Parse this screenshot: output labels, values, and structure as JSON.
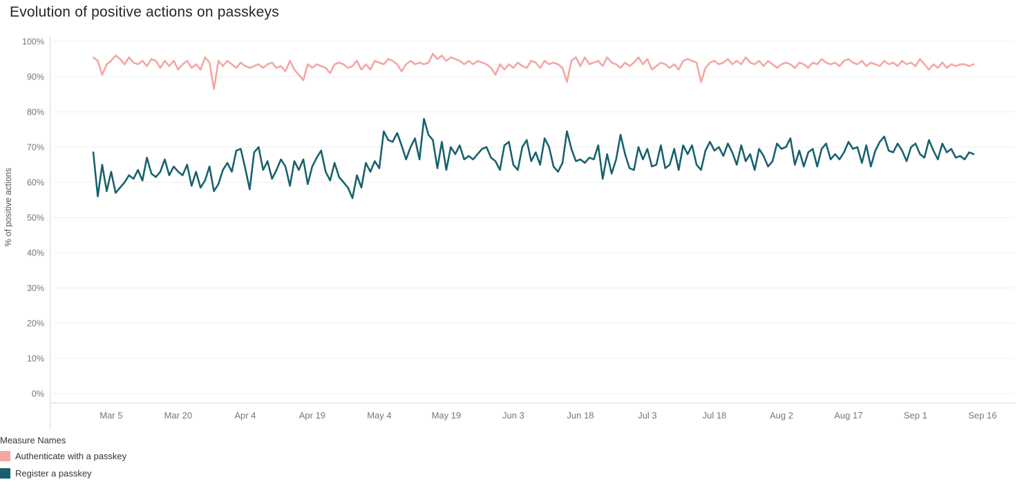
{
  "title": "Evolution of positive actions on passkeys",
  "y_axis": {
    "label": "% of positive actions"
  },
  "legend": {
    "title": "Measure Names",
    "items": [
      {
        "label": "Authenticate with a passkey",
        "color": "#f4a6a3",
        "slug": "authenticate-with-a-passkey"
      },
      {
        "label": "Register a passkey",
        "color": "#17616e",
        "slug": "register-a-passkey"
      }
    ]
  },
  "chart_data": {
    "type": "line",
    "title": "Evolution of positive actions on passkeys",
    "ylabel": "% of positive actions",
    "ylim": [
      0,
      100
    ],
    "y_ticks": [
      0,
      10,
      20,
      30,
      40,
      50,
      60,
      70,
      80,
      90,
      100
    ],
    "y_tick_labels": [
      "0%",
      "10%",
      "20%",
      "30%",
      "40%",
      "50%",
      "60%",
      "70%",
      "80%",
      "90%",
      "100%"
    ],
    "x_unit": "day index from Mar 1",
    "x_tick_days": [
      4,
      19,
      34,
      49,
      64,
      79,
      94,
      109,
      124,
      139,
      154,
      169,
      184,
      199
    ],
    "x_tick_labels": [
      "Mar 5",
      "Mar 20",
      "Apr 4",
      "Apr 19",
      "May 4",
      "May 19",
      "Jun 3",
      "Jun 18",
      "Jul 3",
      "Jul 18",
      "Aug 2",
      "Aug 17",
      "Sep 1",
      "Sep 16"
    ],
    "grid": "horizontal",
    "legend_position": "bottom-left",
    "series": [
      {
        "name": "Authenticate with a passkey",
        "color": "#f4a6a3",
        "values": [
          95.5,
          94.5,
          90.5,
          93.5,
          94.5,
          96,
          95,
          93.5,
          95.5,
          94,
          93.5,
          94.5,
          93,
          95,
          94.5,
          92.5,
          94.5,
          93,
          94.5,
          92,
          93.5,
          94.5,
          92.5,
          93.5,
          92,
          95.5,
          94,
          86.5,
          94.5,
          93,
          94.5,
          93.5,
          92.5,
          94,
          93,
          92.5,
          93,
          93.5,
          92.5,
          93.5,
          94,
          92.5,
          93,
          91.5,
          94.5,
          92,
          90.5,
          89,
          93.5,
          92.5,
          93.5,
          93,
          92.5,
          91,
          93.5,
          94,
          93.5,
          92.5,
          93,
          94.5,
          92,
          93.5,
          92,
          94.5,
          94,
          93.5,
          95,
          94.5,
          93.5,
          91.5,
          93.5,
          94.5,
          93.5,
          94,
          93.5,
          94,
          96.5,
          95,
          96,
          94.5,
          95.5,
          95,
          94.5,
          93.5,
          94.5,
          93.5,
          94.5,
          94,
          93.5,
          92.5,
          90.5,
          93.5,
          92,
          93.5,
          92.5,
          94,
          93,
          92.5,
          94.5,
          94,
          92.5,
          94.5,
          93.5,
          94,
          93.5,
          92.5,
          88.5,
          94.5,
          95.5,
          93,
          95.5,
          93.5,
          94,
          94.5,
          93,
          95.5,
          94,
          93.5,
          92.5,
          94,
          93,
          94,
          95.5,
          93.5,
          95,
          92,
          93,
          94,
          93.5,
          92.5,
          93.5,
          92,
          94.5,
          95,
          94.5,
          94,
          88.5,
          92.5,
          94,
          94.5,
          93.5,
          94,
          95,
          93.5,
          94.5,
          93.5,
          95.5,
          94,
          93.5,
          94.5,
          93,
          94.5,
          93.5,
          92.5,
          93.5,
          94,
          93.5,
          92.5,
          94,
          93.5,
          92.5,
          94,
          93.5,
          95,
          94,
          93.5,
          94,
          93,
          94.5,
          95,
          94,
          93.5,
          94.5,
          93,
          94,
          93.5,
          93,
          94.5,
          93.5,
          94,
          93,
          94.5,
          93.5,
          94,
          93,
          95,
          93.5,
          92,
          93.5,
          92.5,
          94,
          92.5,
          93.5,
          93,
          93.5,
          93.5,
          93,
          93.5
        ]
      },
      {
        "name": "Register a passkey",
        "color": "#17616e",
        "values": [
          68.5,
          56,
          65,
          57.5,
          63,
          57,
          58.5,
          60,
          62,
          61,
          63.5,
          60.5,
          67,
          62.5,
          61.5,
          63,
          66.5,
          62,
          64.5,
          63,
          62,
          65,
          59,
          63,
          58.5,
          60.5,
          64.5,
          57.5,
          59.5,
          63.5,
          65.5,
          63,
          69,
          69.5,
          64,
          58,
          68.5,
          70,
          63.5,
          66,
          61,
          63.5,
          66.5,
          64.5,
          59,
          66,
          63.5,
          66.5,
          59.5,
          64.5,
          67,
          69,
          63,
          60.5,
          65.5,
          61.5,
          60,
          58.5,
          55.5,
          62,
          58.5,
          65.5,
          63,
          66,
          64,
          74.5,
          72,
          71.5,
          74,
          70.5,
          66.5,
          70,
          72.5,
          66.5,
          78,
          73.5,
          72,
          64,
          71.5,
          63.5,
          70,
          68,
          70.5,
          66.5,
          67.5,
          66.5,
          68,
          69.5,
          70,
          67,
          66,
          63.5,
          70.5,
          71.5,
          65,
          63.5,
          70,
          72,
          66,
          68.5,
          65,
          72.5,
          70,
          64.5,
          63,
          65.5,
          74.5,
          69.5,
          66,
          66.5,
          65.5,
          67,
          66.5,
          70.5,
          61,
          68,
          62.5,
          66.5,
          73.5,
          68,
          64,
          63.5,
          70,
          66.5,
          69.5,
          64.5,
          65,
          70.5,
          64,
          65,
          69.5,
          63.5,
          70.5,
          68,
          70.5,
          65,
          63.5,
          69,
          71.5,
          69,
          70,
          67.5,
          71,
          68.5,
          65,
          70.5,
          66,
          68,
          63.5,
          69.5,
          67.5,
          64.5,
          66,
          71,
          69.5,
          70,
          72.5,
          65,
          69,
          64.5,
          68.5,
          69.5,
          64.5,
          69.5,
          71,
          66.5,
          68,
          66.5,
          68.5,
          71.5,
          69.5,
          70,
          65.5,
          70.5,
          64.5,
          69,
          71.5,
          73,
          69,
          68.5,
          71,
          69,
          66,
          70,
          71,
          68,
          67,
          72,
          69,
          66.5,
          71,
          68.5,
          69.5,
          67,
          67.5,
          66.5,
          68.5,
          68
        ]
      }
    ]
  },
  "style": {
    "gridline_color": "#ececec",
    "axis_rule_color": "#d9d9d9",
    "tick_label_color": "#767676"
  }
}
